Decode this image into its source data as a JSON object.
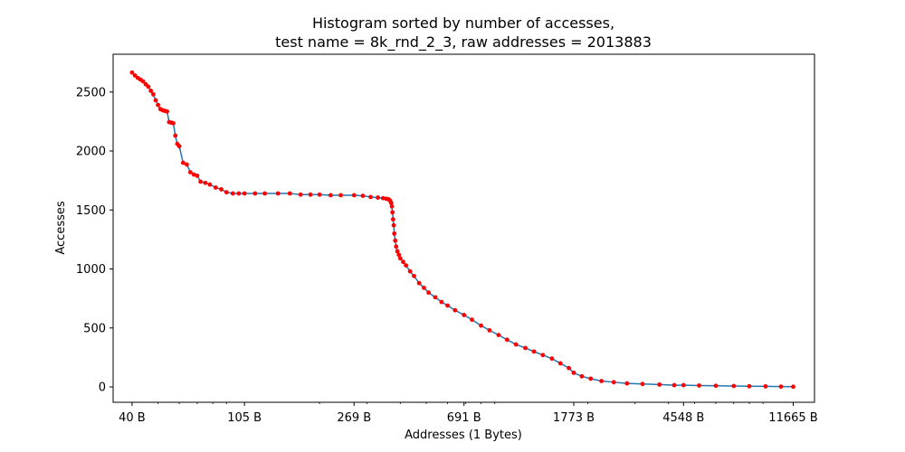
{
  "chart_data": {
    "type": "line",
    "title_line1": "Histogram sorted by number of accesses,",
    "title_line2": "test name = 8k_rnd_2_3, raw addresses = 2013883",
    "xlabel": "Addresses (1 Bytes)",
    "ylabel": "Accesses",
    "x_scale": "log",
    "xlim": [
      34,
      14000
    ],
    "ylim": [
      -130,
      2820
    ],
    "x_ticks": [
      {
        "value": 40,
        "label": "40 B"
      },
      {
        "value": 105,
        "label": "105 B"
      },
      {
        "value": 269,
        "label": "269 B"
      },
      {
        "value": 691,
        "label": "691 B"
      },
      {
        "value": 1773,
        "label": "1773 B"
      },
      {
        "value": 4548,
        "label": "4548 B"
      },
      {
        "value": 11665,
        "label": "11665 B"
      }
    ],
    "y_ticks": [
      {
        "value": 0,
        "label": "0"
      },
      {
        "value": 500,
        "label": "500"
      },
      {
        "value": 1000,
        "label": "1000"
      },
      {
        "value": 1500,
        "label": "1500"
      },
      {
        "value": 2000,
        "label": "2000"
      },
      {
        "value": 2500,
        "label": "2500"
      }
    ],
    "grid": false,
    "line_color": "#1f77b4",
    "marker_color": "#ff0000",
    "series": [
      {
        "x": [
          40,
          41,
          42,
          43,
          44,
          45,
          46,
          47,
          48,
          49,
          50,
          51,
          52,
          53,
          54,
          55,
          56,
          57,
          58,
          59,
          60,
          62,
          64,
          66,
          68,
          70,
          72,
          75,
          78,
          82,
          86,
          90,
          95,
          100,
          105,
          115,
          125,
          140,
          155,
          170,
          185,
          200,
          220,
          240,
          269,
          290,
          310,
          330,
          345,
          355,
          362,
          366,
          370,
          372,
          374,
          376,
          378,
          380,
          383,
          386,
          390,
          395,
          400,
          410,
          420,
          435,
          450,
          470,
          490,
          510,
          540,
          570,
          600,
          640,
          691,
          740,
          800,
          860,
          930,
          1000,
          1080,
          1170,
          1260,
          1360,
          1470,
          1580,
          1700,
          1773,
          1900,
          2050,
          2250,
          2500,
          2800,
          3200,
          3700,
          4200,
          4548,
          5200,
          6000,
          7000,
          8000,
          9200,
          10500,
          11665
        ],
        "y": [
          2665,
          2640,
          2620,
          2605,
          2590,
          2565,
          2545,
          2510,
          2480,
          2430,
          2390,
          2355,
          2345,
          2340,
          2335,
          2245,
          2240,
          2235,
          2130,
          2060,
          2040,
          1900,
          1885,
          1820,
          1800,
          1790,
          1740,
          1730,
          1715,
          1690,
          1675,
          1650,
          1640,
          1640,
          1640,
          1640,
          1640,
          1640,
          1640,
          1630,
          1630,
          1630,
          1625,
          1625,
          1625,
          1620,
          1610,
          1605,
          1600,
          1595,
          1590,
          1580,
          1560,
          1530,
          1480,
          1420,
          1370,
          1300,
          1240,
          1190,
          1150,
          1120,
          1090,
          1060,
          1030,
          980,
          940,
          880,
          840,
          800,
          760,
          720,
          690,
          650,
          610,
          570,
          520,
          480,
          440,
          400,
          360,
          330,
          300,
          270,
          240,
          200,
          160,
          120,
          90,
          70,
          50,
          40,
          30,
          25,
          20,
          15,
          15,
          12,
          10,
          8,
          6,
          5,
          3,
          2
        ]
      }
    ]
  }
}
